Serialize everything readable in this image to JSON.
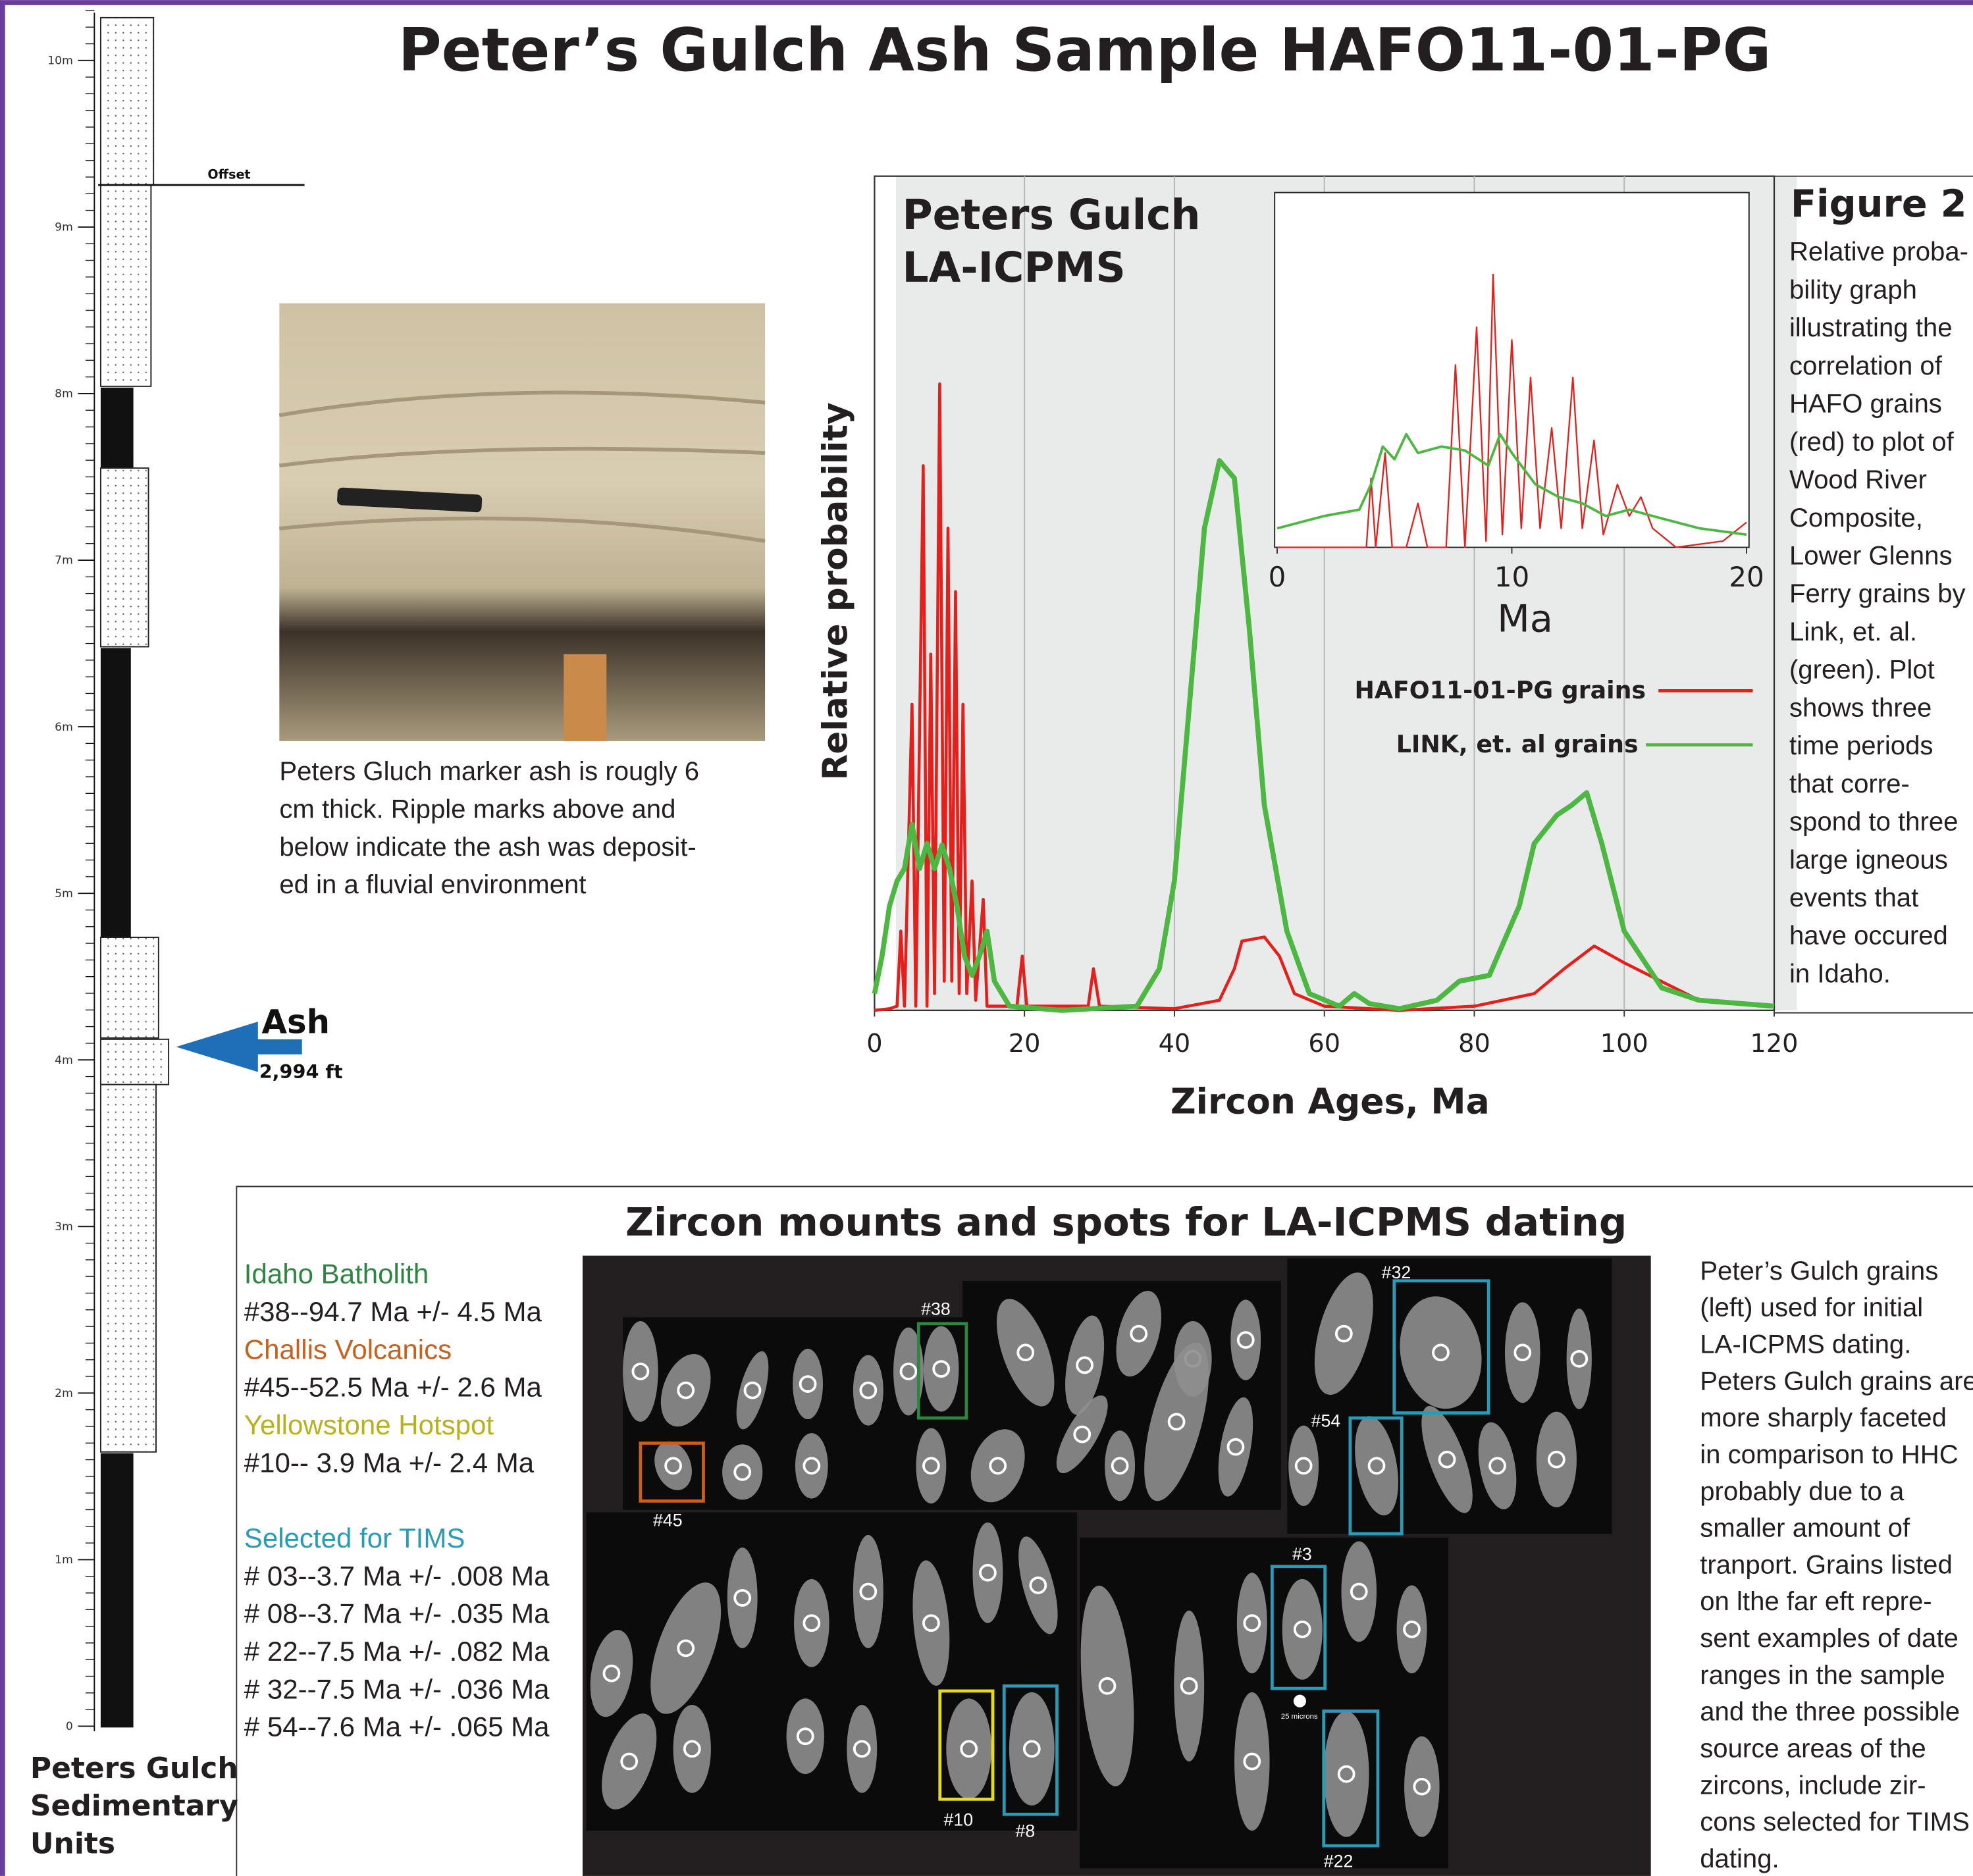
{
  "title": "Peter’s Gulch Ash Sample HAFO11-01-PG",
  "column": {
    "ticks": [
      0,
      {
        "value": 1,
        "label": "1m"
      },
      {
        "value": 2,
        "label": "2m"
      },
      {
        "value": 3,
        "label": "3m"
      },
      {
        "value": 4,
        "label": "4m"
      },
      {
        "value": 5,
        "label": "5m"
      },
      {
        "value": 6,
        "label": "6m"
      },
      {
        "value": 7,
        "label": "7m"
      },
      {
        "value": 8,
        "label": "8m"
      },
      {
        "value": 9,
        "label": "9m"
      },
      {
        "value": 10,
        "label": "10m"
      }
    ],
    "offset_label": "Offset",
    "ash_label": "Ash",
    "ash_elevation": "2,994 ft",
    "caption": [
      "Peters Gulch",
      "Sedimentary",
      "Units"
    ]
  },
  "photo_caption": [
    "Peters Gluch marker ash is rougly 6",
    "cm thick. Ripple marks above and",
    "below indicate the ash  was deposit-",
    "ed in a fluvial environment"
  ],
  "chart_data": [
    {
      "type": "line",
      "title_lines": [
        "Peters Gulch",
        "LA-ICPMS"
      ],
      "x_label": "Zircon Ages, Ma",
      "y_label": "Relative probability",
      "xlim": [
        0,
        120
      ],
      "xticks": [
        0,
        20,
        40,
        60,
        80,
        100,
        120
      ],
      "ylim": [
        0,
        1
      ],
      "grid": true,
      "series": [
        {
          "name": "HAFO11-01-PG grains",
          "color": "#e3201b",
          "x": [
            0,
            2,
            3,
            3.5,
            4,
            5,
            5.5,
            6.5,
            7,
            7.5,
            8,
            8.7,
            9.3,
            9.8,
            10.3,
            10.8,
            11.3,
            11.8,
            12.3,
            13,
            13.5,
            14.5,
            15,
            19,
            19.7,
            20.3,
            28.5,
            29.2,
            30,
            40,
            46,
            48,
            49,
            52,
            54,
            56,
            60,
            70,
            80,
            88,
            92,
            96,
            100,
            110,
            120
          ],
          "values": [
            0,
            0.002,
            0.005,
            0.095,
            0.005,
            0.367,
            0.005,
            0.653,
            0.005,
            0.427,
            0.02,
            0.751,
            0.035,
            0.578,
            0.035,
            0.502,
            0.02,
            0.367,
            0.02,
            0.155,
            0.012,
            0.133,
            0.005,
            0.005,
            0.065,
            0.005,
            0.005,
            0.05,
            0.005,
            0.002,
            0.012,
            0.05,
            0.083,
            0.088,
            0.065,
            0.02,
            0.005,
            0,
            0.005,
            0.02,
            0.05,
            0.077,
            0.057,
            0.012,
            0.005
          ]
        },
        {
          "name": "LINK, et. al grains",
          "color": "#4cb842",
          "x": [
            0,
            1,
            2,
            3,
            4,
            5,
            6,
            7,
            8,
            9,
            10,
            11,
            12,
            13,
            14,
            15,
            16,
            18,
            25,
            35,
            38,
            40,
            42,
            44,
            46,
            48,
            50,
            52,
            55,
            58,
            62,
            64,
            66,
            70,
            75,
            78,
            82,
            86,
            88,
            91,
            93,
            95,
            97,
            100,
            105,
            110,
            120
          ],
          "values": [
            0.02,
            0.065,
            0.125,
            0.155,
            0.17,
            0.223,
            0.17,
            0.2,
            0.17,
            0.198,
            0.17,
            0.125,
            0.065,
            0.042,
            0.065,
            0.095,
            0.035,
            0.005,
            0,
            0.005,
            0.05,
            0.155,
            0.367,
            0.578,
            0.659,
            0.638,
            0.457,
            0.246,
            0.095,
            0.02,
            0.005,
            0.02,
            0.008,
            0.002,
            0.012,
            0.035,
            0.042,
            0.125,
            0.2,
            0.234,
            0.246,
            0.261,
            0.2,
            0.095,
            0.027,
            0.012,
            0.005
          ]
        }
      ]
    },
    {
      "type": "line",
      "x_label": "Ma",
      "xlim": [
        0,
        20
      ],
      "xticks": [
        0,
        10,
        20
      ],
      "ylim": [
        0,
        1
      ],
      "series": [
        {
          "color": "#e3201b",
          "x": [
            0,
            3.8,
            4,
            4.2,
            4.6,
            4.9,
            5.5,
            6,
            6.4,
            7.2,
            7.6,
            8,
            8.5,
            8.9,
            9.2,
            9.6,
            10,
            10.4,
            10.8,
            11.2,
            11.7,
            12.1,
            12.6,
            13,
            13.5,
            13.9,
            14.5,
            15,
            15.5,
            16,
            17,
            19,
            20
          ],
          "values": [
            0,
            0,
            0.196,
            0,
            0.268,
            0,
            0,
            0.125,
            0,
            0,
            0.518,
            0,
            0.625,
            0.018,
            0.775,
            0.036,
            0.589,
            0.054,
            0.482,
            0.054,
            0.339,
            0.054,
            0.482,
            0.054,
            0.304,
            0.036,
            0.179,
            0.089,
            0.143,
            0.054,
            0,
            0.018,
            0.071
          ]
        },
        {
          "color": "#4cb842",
          "x": [
            0,
            2,
            3.5,
            4,
            4.5,
            5,
            5.5,
            6,
            7,
            8,
            9,
            9.5,
            10,
            11,
            12,
            13,
            14,
            15,
            16,
            18,
            20
          ],
          "values": [
            0.054,
            0.089,
            0.107,
            0.179,
            0.286,
            0.25,
            0.321,
            0.268,
            0.286,
            0.275,
            0.232,
            0.321,
            0.268,
            0.179,
            0.143,
            0.125,
            0.089,
            0.107,
            0.089,
            0.054,
            0.036
          ]
        }
      ]
    }
  ],
  "figure_caption": {
    "title": "Figure 2",
    "lines": [
      "Relative proba-",
      "bility graph",
      "illustrating the",
      "correlation of",
      "HAFO grains",
      "(red) to plot of",
      "Wood River",
      "Composite,",
      "Lower Glenns",
      "Ferry grains by",
      "Link, et. al.",
      "(green). Plot",
      "shows three",
      "time periods",
      "that corre-",
      "spond to three",
      "large igneous",
      "events that",
      "have occured",
      "in Idaho."
    ]
  },
  "zircon": {
    "title": "Zircon mounts and spots for LA-ICPMS dating",
    "groups": [
      {
        "name": "Idaho Batholith",
        "color": "#2e8540",
        "items": [
          "#38--94.7 Ma +/- 4.5 Ma"
        ]
      },
      {
        "name": "Challis Volcanics",
        "color": "#c9611e",
        "items": [
          "#45--52.5 Ma +/- 2.6 Ma"
        ]
      },
      {
        "name": "Yellowstone Hotspot",
        "color": "#b7b21c",
        "items": [
          "#10--  3.9 Ma +/- 2.4 Ma"
        ]
      },
      {
        "name": "Selected for TIMS",
        "color": "#2a9bb5",
        "items": [
          "# 03--3.7 Ma +/- .008 Ma",
          "# 08--3.7 Ma +/- .035 Ma",
          "# 22--7.5 Ma +/- .082 Ma",
          "# 32--7.5 Ma +/- .036 Ma",
          "# 54--7.6 Ma +/- .065 Ma"
        ]
      }
    ],
    "labels": [
      "#38",
      "#45",
      "#32",
      "#54",
      "#3",
      "#10",
      "#8",
      "#22"
    ],
    "scale_label": "25 microns",
    "description": [
      "Peter’s Gulch grains",
      "(left) used for initial",
      "LA-ICPMS dating.",
      "Peters Gulch grains are",
      "more sharply faceted",
      "in comparison to HHC",
      "probably due to a",
      "smaller amount of",
      "tranport. Grains listed",
      "on lthe far eft repre-",
      "sent examples of date",
      "ranges in the sample",
      "and the three possible",
      "source areas of the",
      "zircons, include zir-",
      "cons selected for TIMS",
      "dating."
    ]
  }
}
